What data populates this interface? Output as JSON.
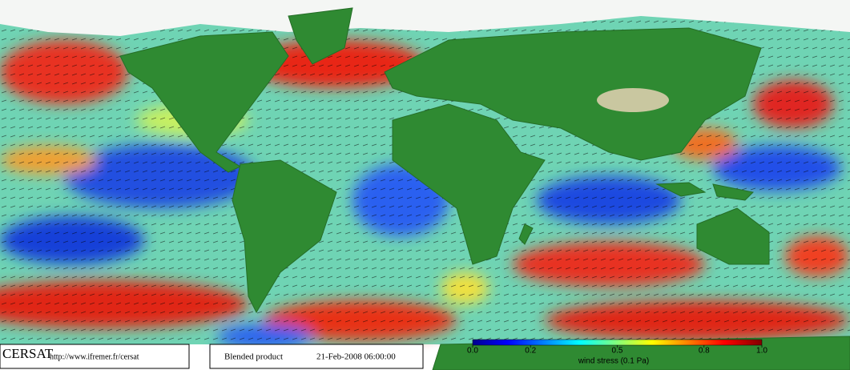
{
  "map": {
    "logo": "CERSAT",
    "url": "http://www.ifremer.fr/cersat",
    "product": "Blended product",
    "date": "21-Feb-2008 06:00:00"
  },
  "legend": {
    "label": "wind stress (0.1 Pa)",
    "ticks": [
      {
        "value": 0,
        "label": "0.0"
      },
      0.2,
      0.5,
      0.8,
      {
        "value": 1,
        "label": "1.0"
      }
    ]
  }
}
